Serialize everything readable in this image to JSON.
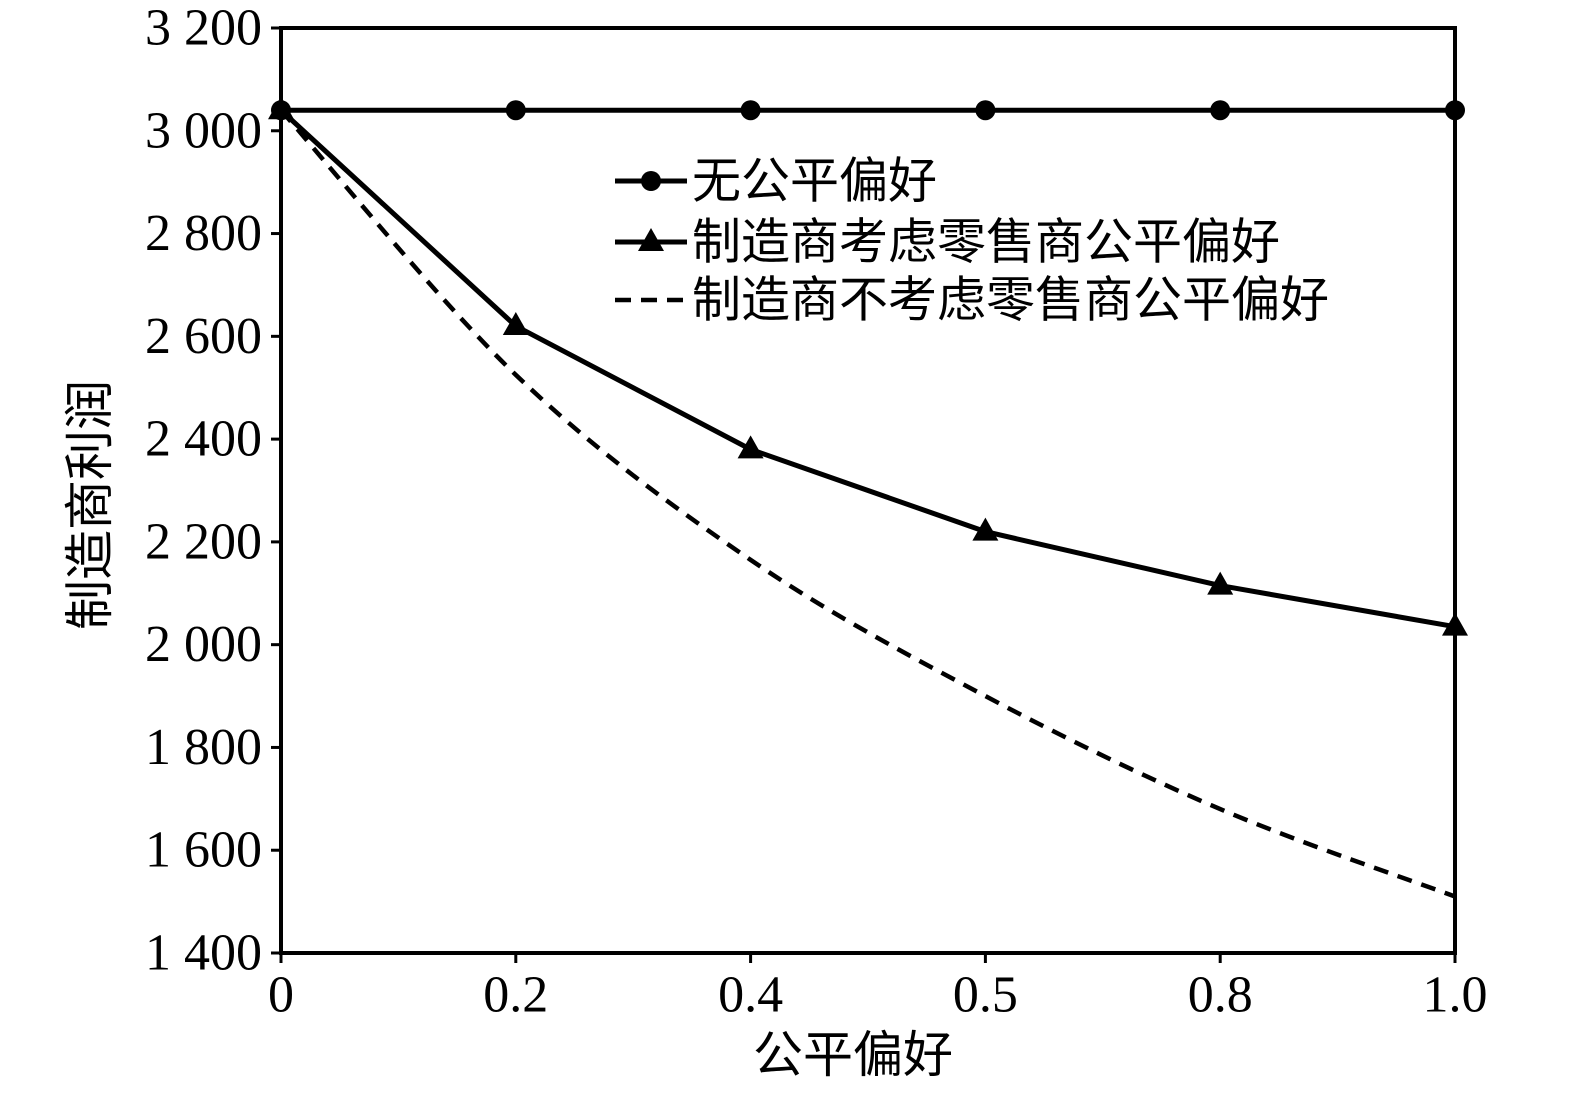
{
  "chart_data": {
    "type": "line",
    "xlabel": "公平偏好",
    "ylabel": "制造商利润",
    "categories": [
      "0",
      "0.2",
      "0.4",
      "0.5",
      "0.8",
      "1.0"
    ],
    "ylim": [
      1400,
      3200
    ],
    "yticks": [
      1400,
      1600,
      1800,
      2000,
      2200,
      2400,
      2600,
      2800,
      3000,
      3200
    ],
    "ytick_labels": [
      "1 400",
      "1 600",
      "1 800",
      "2 000",
      "2 200",
      "2 400",
      "2 600",
      "2 800",
      "3 000",
      "3 200"
    ],
    "grid": false,
    "legend": "upper-right",
    "series": [
      {
        "name": "无公平偏好",
        "marker": "circle",
        "line": "solid",
        "color": "#000000",
        "values": [
          3040,
          3040,
          3040,
          3040,
          3040,
          3040
        ]
      },
      {
        "name": "制造商考虑零售商公平偏好",
        "marker": "triangle",
        "line": "solid",
        "color": "#000000",
        "values": [
          3040,
          2620,
          2380,
          2220,
          2115,
          2035
        ]
      },
      {
        "name": "制造商不考虑零售商公平偏好",
        "marker": "none",
        "line": "dashed",
        "color": "#000000",
        "values": [
          3040,
          2525,
          2165,
          1900,
          1680,
          1510
        ]
      }
    ]
  }
}
